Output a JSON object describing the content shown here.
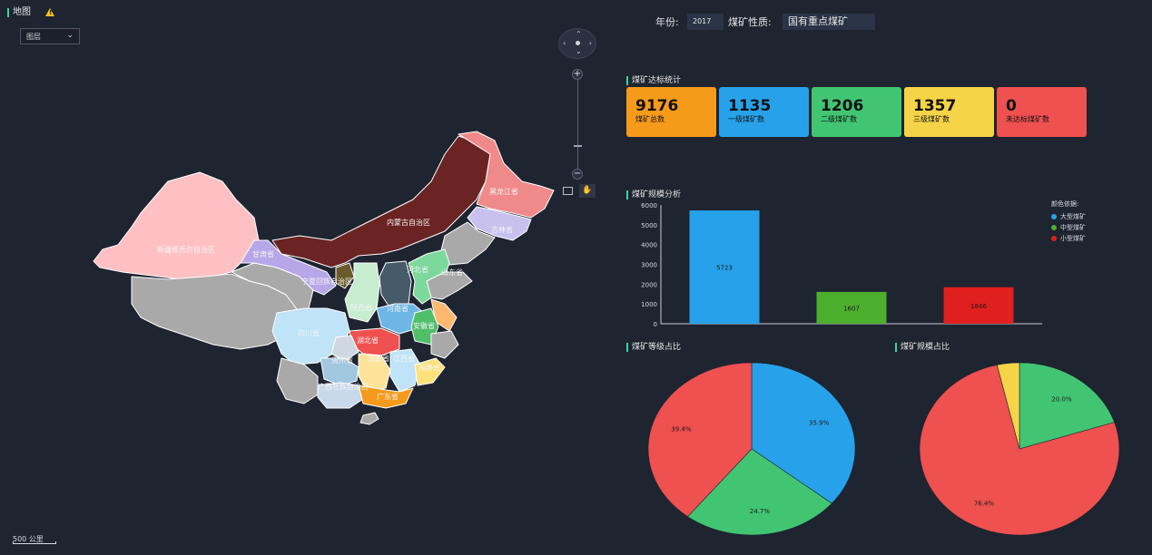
{
  "map": {
    "title": "地图",
    "warning_icon": "warning-icon",
    "layer_select": {
      "value": "图层",
      "icon": "chevron-down-icon"
    },
    "scale_label": "500 公里",
    "labels": [
      "新疆维吾尔自治区",
      "甘肃省",
      "内蒙古自治区",
      "黑龙江省",
      "吉林省",
      "山东省",
      "河北省",
      "宁夏回族自治区",
      "陕西省",
      "河南省",
      "安徽省",
      "四川省",
      "湖北省",
      "贵州省",
      "湖南省",
      "江西省",
      "福建省",
      "广西壮族自治区",
      "广东省"
    ]
  },
  "filters": {
    "year_label": "年份:",
    "year_value": "2017",
    "nature_label": "煤矿性质:",
    "nature_value": "国有重点煤矿"
  },
  "stats": {
    "title": "煤矿达标统计",
    "cards": [
      {
        "value": "9176",
        "label": "煤矿总数",
        "color": "#f59a1b"
      },
      {
        "value": "1135",
        "label": "一级煤矿数",
        "color": "#27a2ea"
      },
      {
        "value": "1206",
        "label": "二级煤矿数",
        "color": "#41c572"
      },
      {
        "value": "1357",
        "label": "三级煤矿数",
        "color": "#f5d447"
      },
      {
        "value": "0",
        "label": "未达标煤矿数",
        "color": "#ef5050"
      }
    ]
  },
  "chart_data": [
    {
      "type": "bar",
      "title": "煤矿规模分析",
      "categories": [
        "大型煤矿",
        "中型煤矿",
        "小型煤矿"
      ],
      "values": [
        5723,
        1607,
        1846
      ],
      "colors": [
        "#27a2ea",
        "#4caf2e",
        "#e0201e"
      ],
      "ylim": [
        0,
        6000
      ],
      "yticks": [
        0,
        1000,
        2000,
        3000,
        4000,
        5000,
        6000
      ],
      "legend_title": "颜色依据:",
      "legend": "top-right"
    },
    {
      "type": "pie",
      "title": "煤矿等级占比",
      "slices": [
        {
          "value": 35.9,
          "label": "35.9%",
          "color": "#27a2ea"
        },
        {
          "value": 24.7,
          "label": "24.7%",
          "color": "#41c572"
        },
        {
          "value": 39.4,
          "label": "39.4%",
          "color": "#ef5050"
        }
      ]
    },
    {
      "type": "pie",
      "title": "煤矿规模占比",
      "slices": [
        {
          "value": 20.0,
          "label": "20.0%",
          "color": "#41c572"
        },
        {
          "value": 76.4,
          "label": "76.4%",
          "color": "#ef5050"
        },
        {
          "value": 3.6,
          "label": "",
          "color": "#f5d447"
        }
      ]
    }
  ]
}
